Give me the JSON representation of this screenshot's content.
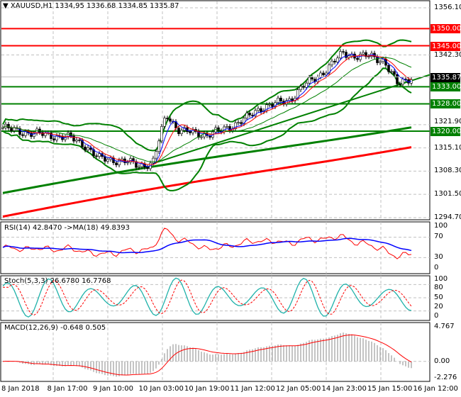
{
  "header": {
    "symbol": "XAUUSD,H1",
    "ohlc": "1334,95 1336.68 1334.85 1335.87"
  },
  "price_axis": [
    "1356.10",
    "1342.30",
    "1321.90",
    "1315.10",
    "1308.30",
    "1301.50",
    "1294.70"
  ],
  "levels": [
    {
      "price": 1350.0,
      "label": "1350.00",
      "color": "#ff0000"
    },
    {
      "price": 1345.0,
      "label": "1345.00",
      "color": "#ff0000"
    },
    {
      "price": 1333.0,
      "label": "1333.00",
      "color": "#008000"
    },
    {
      "price": 1328.0,
      "label": "1328.00",
      "color": "#008000"
    },
    {
      "price": 1320.0,
      "label": "1320.00",
      "color": "#008000"
    }
  ],
  "current": {
    "price": 1335.87,
    "label": "1335.87"
  },
  "rsi": {
    "title": "RSI(14) 42.8470  ->MA(18) 49.8393",
    "axis": [
      "100",
      "70",
      "30",
      "0"
    ]
  },
  "stoch": {
    "title": "Stoch(5,3,3) 26.6780 16.7768",
    "axis": [
      "100",
      "80",
      "50",
      "20",
      "0"
    ]
  },
  "macd": {
    "title": "MACD(12,26,9) -0.648 0.505",
    "axis": [
      "4.767",
      "0.00",
      "-2.276"
    ]
  },
  "time_axis": [
    "8 Jan 2018",
    "8 Jan 17:00",
    "9 Jan 10:00",
    "10 Jan 03:00",
    "10 Jan 19:00",
    "11 Jan 12:00",
    "12 Jan 05:00",
    "14 Jan 23:00",
    "15 Jan 15:00",
    "16 Jan 12:00"
  ],
  "chart_data": {
    "type": "line",
    "title": "XAUUSD,H1",
    "ylim": [
      1294.7,
      1356.1
    ],
    "close": [
      1321,
      1320,
      1319.5,
      1319,
      1318.5,
      1318,
      1316,
      1312,
      1311.7,
      1311,
      1310,
      1310.5,
      1325,
      1320,
      1319.5,
      1319,
      1320,
      1322,
      1324,
      1327,
      1328,
      1329,
      1333,
      1335.6,
      1339,
      1342.8,
      1342,
      1341.8,
      1340.7,
      1333.5,
      1335.87
    ],
    "ma200": [
      1301.9,
      1321.6
    ],
    "ma_red": [
      1295,
      1315.8
    ],
    "trendline": [
      1310.5,
      1336.5
    ]
  }
}
